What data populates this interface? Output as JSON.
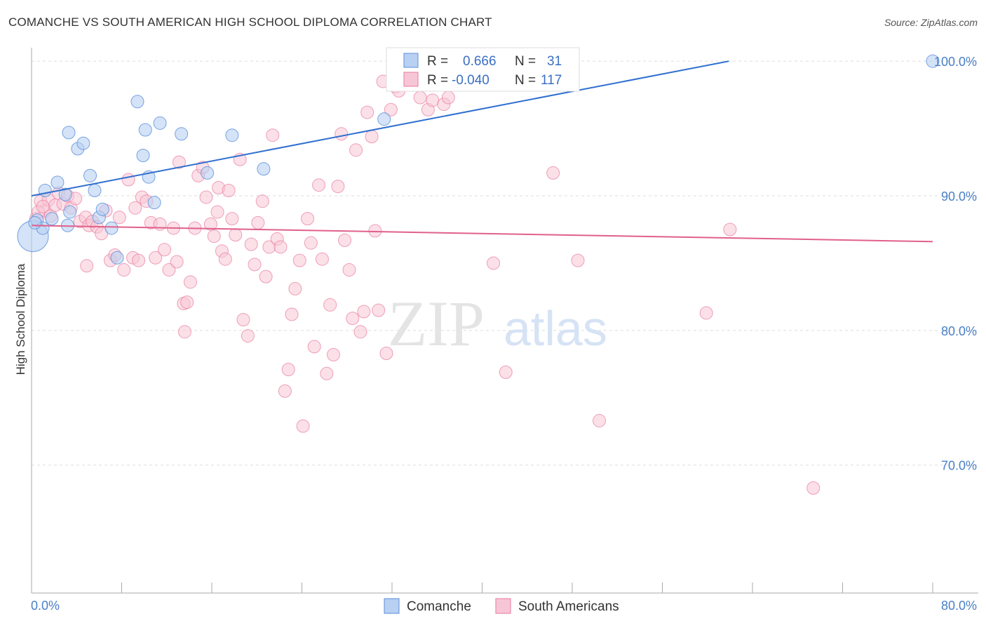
{
  "title": "COMANCHE VS SOUTH AMERICAN HIGH SCHOOL DIPLOMA CORRELATION CHART",
  "source": "Source: ZipAtlas.com",
  "watermark": {
    "zip": "ZIP",
    "atlas": "atlas"
  },
  "colors": {
    "comanche": "#5b8fd9",
    "comanche_fill": "#b8d0f2",
    "south_americans": "#e87aa0",
    "south_americans_fill": "#f7c6d6",
    "grid": "#dddddd",
    "axis_text": "#4a7fc8"
  },
  "legend": {
    "rows": [
      {
        "r_label": "R =",
        "r_value": "0.666",
        "n_label": "N =",
        "n_value": "31"
      },
      {
        "r_label": "R =",
        "r_value": "-0.040",
        "n_label": "N =",
        "n_value": "117"
      }
    ]
  },
  "bottom_legend": [
    "Comanche",
    "South Americans"
  ],
  "chart_data": {
    "type": "scatter",
    "title": "COMANCHE VS SOUTH AMERICAN HIGH SCHOOL DIPLOMA CORRELATION CHART",
    "xlabel": "",
    "ylabel": "High School Diploma",
    "xlim": [
      0,
      80
    ],
    "ylim": [
      60.5,
      101
    ],
    "x_tick_labels": [
      "0.0%",
      "80.0%"
    ],
    "y_tick_labels": [
      "100.0%",
      "90.0%",
      "80.0%",
      "70.0%"
    ],
    "y_ticks": [
      100,
      90,
      80,
      70
    ],
    "grid": true,
    "legend_position": "top-center",
    "series": [
      {
        "name": "Comanche",
        "r": 0.666,
        "n": 31,
        "trend": {
          "x": [
            0,
            61.9
          ],
          "y": [
            90.0,
            100.0
          ]
        },
        "points": [
          [
            0,
            87
          ],
          [
            0.5,
            88.2
          ],
          [
            1,
            87.6
          ],
          [
            1.2,
            90.4
          ],
          [
            1.8,
            88.3
          ],
          [
            2.3,
            91
          ],
          [
            3,
            90.1
          ],
          [
            3.2,
            87.8
          ],
          [
            3.3,
            94.7
          ],
          [
            3.4,
            88.8
          ],
          [
            4.1,
            93.5
          ],
          [
            4.6,
            93.9
          ],
          [
            5.2,
            91.5
          ],
          [
            5.6,
            90.4
          ],
          [
            6,
            88.4
          ],
          [
            6.3,
            89
          ],
          [
            7.1,
            87.6
          ],
          [
            7.6,
            85.4
          ],
          [
            9.4,
            97
          ],
          [
            9.9,
            93
          ],
          [
            10.1,
            94.9
          ],
          [
            10.4,
            91.4
          ],
          [
            10.9,
            89.5
          ],
          [
            11.4,
            95.4
          ],
          [
            13.3,
            94.6
          ],
          [
            15.6,
            91.7
          ],
          [
            17.8,
            94.5
          ],
          [
            20.6,
            92
          ],
          [
            31.3,
            95.7
          ],
          [
            80,
            100
          ],
          [
            0.3,
            88
          ]
        ]
      },
      {
        "name": "South Americans",
        "r": -0.04,
        "n": 117,
        "trend": {
          "x": [
            0,
            80
          ],
          "y": [
            87.8,
            86.6
          ]
        },
        "points": [
          [
            0.4,
            88.3
          ],
          [
            0.8,
            89.6
          ],
          [
            1.2,
            88.9
          ],
          [
            1.5,
            89.7
          ],
          [
            1.7,
            88.5
          ],
          [
            2.1,
            89.3
          ],
          [
            2.4,
            90.2
          ],
          [
            2.8,
            89.4
          ],
          [
            3.2,
            90.0
          ],
          [
            3.5,
            89.1
          ],
          [
            3.9,
            89.8
          ],
          [
            4.3,
            88.1
          ],
          [
            4.8,
            88.4
          ],
          [
            5.1,
            87.8
          ],
          [
            5.4,
            88.1
          ],
          [
            5.8,
            87.7
          ],
          [
            6.2,
            87.2
          ],
          [
            6.6,
            88.9
          ],
          [
            7.0,
            85.2
          ],
          [
            7.4,
            85.6
          ],
          [
            7.8,
            88.4
          ],
          [
            8.2,
            84.5
          ],
          [
            8.6,
            91.2
          ],
          [
            9.0,
            85.4
          ],
          [
            9.2,
            89.1
          ],
          [
            9.5,
            85.2
          ],
          [
            9.8,
            89.9
          ],
          [
            10.2,
            89.6
          ],
          [
            10.6,
            88
          ],
          [
            11.0,
            85.4
          ],
          [
            11.4,
            87.9
          ],
          [
            11.8,
            86
          ],
          [
            12.2,
            84.5
          ],
          [
            12.6,
            87.6
          ],
          [
            12.9,
            85.1
          ],
          [
            13.1,
            92.5
          ],
          [
            13.5,
            82
          ],
          [
            13.8,
            82.1
          ],
          [
            14.1,
            83.6
          ],
          [
            14.5,
            87.6
          ],
          [
            14.8,
            91.5
          ],
          [
            15.2,
            92.1
          ],
          [
            15.5,
            89.9
          ],
          [
            15.9,
            87.9
          ],
          [
            16.2,
            87
          ],
          [
            16.6,
            90.6
          ],
          [
            16.9,
            85.9
          ],
          [
            17.2,
            85.3
          ],
          [
            17.5,
            90.4
          ],
          [
            17.8,
            88.3
          ],
          [
            18.1,
            87.1
          ],
          [
            18.5,
            92.7
          ],
          [
            18.8,
            80.8
          ],
          [
            19.2,
            79.6
          ],
          [
            19.5,
            86.4
          ],
          [
            19.8,
            84.9
          ],
          [
            20.1,
            88.0
          ],
          [
            20.5,
            89.6
          ],
          [
            20.8,
            84.0
          ],
          [
            21.1,
            86.2
          ],
          [
            21.4,
            94.5
          ],
          [
            21.8,
            86.8
          ],
          [
            22.1,
            86.2
          ],
          [
            22.5,
            75.5
          ],
          [
            22.8,
            77.1
          ],
          [
            23.1,
            81.2
          ],
          [
            23.4,
            83.1
          ],
          [
            23.8,
            85.2
          ],
          [
            24.1,
            72.9
          ],
          [
            24.5,
            88.3
          ],
          [
            24.8,
            86.5
          ],
          [
            25.1,
            78.8
          ],
          [
            25.5,
            90.8
          ],
          [
            25.8,
            85.3
          ],
          [
            26.2,
            76.8
          ],
          [
            26.5,
            81.9
          ],
          [
            26.8,
            78.2
          ],
          [
            27.2,
            90.7
          ],
          [
            27.5,
            94.6
          ],
          [
            27.8,
            86.7
          ],
          [
            28.2,
            84.5
          ],
          [
            28.5,
            80.9
          ],
          [
            28.8,
            93.4
          ],
          [
            29.2,
            79.9
          ],
          [
            29.5,
            81.4
          ],
          [
            29.8,
            96.2
          ],
          [
            30.2,
            94.4
          ],
          [
            30.5,
            87.4
          ],
          [
            30.8,
            81.5
          ],
          [
            31.2,
            98.5
          ],
          [
            31.5,
            78.3
          ],
          [
            31.9,
            96.4
          ],
          [
            32.3,
            98.1
          ],
          [
            32.6,
            97.8
          ],
          [
            33,
            100
          ],
          [
            34.1,
            100
          ],
          [
            34.5,
            97.3
          ],
          [
            35.0,
            100
          ],
          [
            35.2,
            96.4
          ],
          [
            35.6,
            97.1
          ],
          [
            36.6,
            96.8
          ],
          [
            37.0,
            97.3
          ],
          [
            37.6,
            100
          ],
          [
            38.3,
            100
          ],
          [
            41.0,
            85.0
          ],
          [
            42.1,
            76.9
          ],
          [
            46.3,
            91.7
          ],
          [
            48.5,
            85.2
          ],
          [
            50.4,
            73.3
          ],
          [
            59.9,
            81.3
          ],
          [
            62,
            87.5
          ],
          [
            69.4,
            68.3
          ],
          [
            0.6,
            88.8
          ],
          [
            1.0,
            89.2
          ],
          [
            4.9,
            84.8
          ],
          [
            13.6,
            79.9
          ],
          [
            16.5,
            88.8
          ]
        ]
      }
    ]
  }
}
